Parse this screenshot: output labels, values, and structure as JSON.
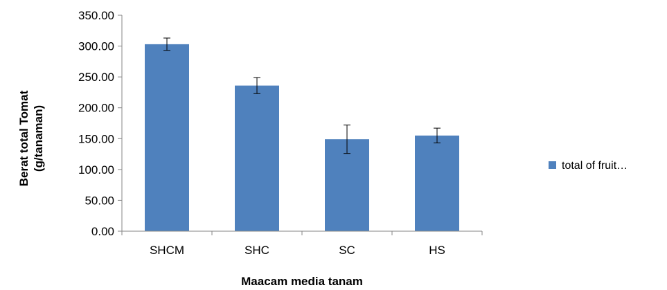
{
  "chart_data": {
    "type": "bar",
    "categories": [
      "SHCM",
      "SHC",
      "SC",
      "HS"
    ],
    "series": [
      {
        "name": "total of fruit…",
        "values": [
          303,
          236,
          149,
          155
        ],
        "error": [
          10,
          13,
          23,
          12
        ],
        "color": "#4F81BD"
      }
    ],
    "ylim": [
      0,
      350
    ],
    "yticks": [
      "0.00",
      "50.00",
      "100.00",
      "150.00",
      "200.00",
      "250.00",
      "300.00",
      "350.00"
    ],
    "xlabel": "Maacam media tanam",
    "ylabel_lines": [
      "Berat total  Tomat",
      "(g/tanaman)"
    ],
    "grid": false,
    "legend_position": "right"
  }
}
